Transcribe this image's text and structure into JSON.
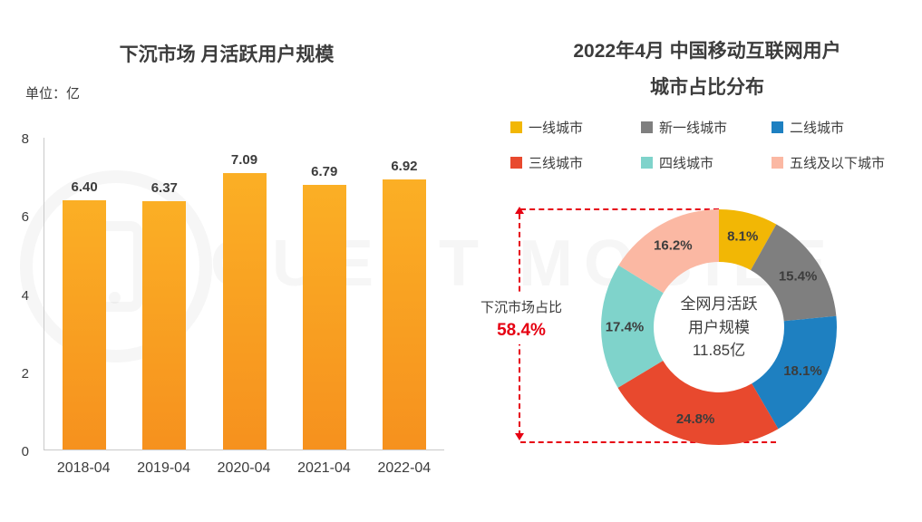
{
  "watermark": {
    "text": "QUEST MOBILE"
  },
  "bar_section": {
    "title": "下沉市场 月活跃用户规模",
    "unit": "单位：亿"
  },
  "donut_section": {
    "title_line1": "2022年4月 中国移动互联网用户",
    "title_line2": "城市占比分布",
    "center_lines": [
      "全网月活跃",
      "用户规模",
      "11.85亿"
    ],
    "annotation_label": "下沉市场占比",
    "annotation_value": "58.4%"
  },
  "chart_data": [
    {
      "type": "bar",
      "title": "下沉市场 月活跃用户规模",
      "unit": "亿",
      "categories": [
        "2018-04",
        "2019-04",
        "2020-04",
        "2021-04",
        "2022-04"
      ],
      "values": [
        6.4,
        6.37,
        7.09,
        6.79,
        6.92
      ],
      "value_labels": [
        "6.40",
        "6.37",
        "7.09",
        "6.79",
        "6.92"
      ],
      "ylim": [
        0,
        8
      ],
      "y_ticks": [
        0,
        2,
        4,
        6,
        8
      ],
      "bar_color_top": "#FBAF25",
      "bar_color_bottom": "#F6911E",
      "grid": false
    },
    {
      "type": "pie",
      "title": "2022年4月 中国移动互联网用户 城市占比分布",
      "labels": [
        "一线城市",
        "新一线城市",
        "二线城市",
        "三线城市",
        "四线城市",
        "五线及以下城市"
      ],
      "values": [
        8.1,
        15.4,
        18.1,
        24.8,
        17.4,
        16.2
      ],
      "value_labels": [
        "8.1%",
        "15.4%",
        "18.1%",
        "24.8%",
        "17.4%",
        "16.2%"
      ],
      "colors": [
        "#F2B705",
        "#7F7F7F",
        "#1E80C1",
        "#E8492E",
        "#7FD3CB",
        "#FBB8A3"
      ],
      "inner_radius_ratio": 0.55,
      "center_label": "全网月活跃用户规模 11.85亿",
      "annotation": "下沉市场占比 58.4%",
      "legend_position": "top"
    }
  ]
}
